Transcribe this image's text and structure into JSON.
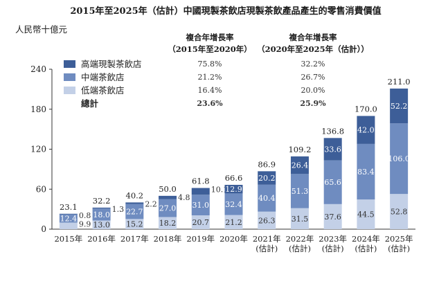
{
  "chart_data": {
    "type": "bar",
    "stacked": true,
    "title": "2015年至2025年（估計）中國現製茶飲店現製茶飲產品產生的零售消費價值",
    "ylabel": "人民幣十億元",
    "ylim": [
      0,
      240
    ],
    "yticks": [
      "0",
      "60",
      "120",
      "180",
      "240"
    ],
    "grid": false,
    "categories": [
      [
        "2015年"
      ],
      [
        "2016年"
      ],
      [
        "2017年"
      ],
      [
        "2018年"
      ],
      [
        "2019年"
      ],
      [
        "2020年"
      ],
      [
        "2021年",
        "(估計)"
      ],
      [
        "2022年",
        "(估計)"
      ],
      [
        "2023年",
        "(估計)"
      ],
      [
        "2024年",
        "(估計)"
      ],
      [
        "2025年",
        "(估計)"
      ]
    ],
    "series": [
      {
        "name": "低端茶飲店",
        "color": "#c3d0e7",
        "values": [
          9.9,
          13.0,
          15.2,
          18.2,
          20.7,
          21.2,
          26.3,
          31.5,
          37.6,
          44.5,
          52.8
        ]
      },
      {
        "name": "中端茶飲店",
        "color": "#6f8cc0",
        "values": [
          12.4,
          18.0,
          22.7,
          27.0,
          31.0,
          32.4,
          40.4,
          51.3,
          65.6,
          83.4,
          106.0
        ]
      },
      {
        "name": "高端現製茶飲店",
        "color": "#3d5e98",
        "values": [
          0.8,
          1.3,
          2.2,
          4.8,
          10.1,
          12.9,
          20.2,
          26.4,
          33.6,
          42.0,
          52.2
        ]
      }
    ],
    "totals": [
      23.1,
      32.2,
      40.2,
      50.0,
      61.8,
      66.6,
      86.9,
      109.2,
      136.8,
      170.0,
      211.0
    ],
    "legend": {
      "placement": "top-left",
      "items": [
        {
          "label": "高端現製茶飲店",
          "color": "#3d5e98"
        },
        {
          "label": "中端茶飲店",
          "color": "#6f8cc0"
        },
        {
          "label": "低端茶飲店",
          "color": "#c3d0e7"
        },
        {
          "label": "總計",
          "color": ""
        }
      ]
    },
    "cagr_table": {
      "headers": [
        [
          "複合年增長率",
          "（2015年至2020年）"
        ],
        [
          "複合年增長率",
          "（2020年至2025年（估計））"
        ]
      ],
      "rows": [
        [
          "75.8%",
          "32.2%"
        ],
        [
          "21.2%",
          "26.7%"
        ],
        [
          "16.4%",
          "20.0%"
        ],
        [
          "23.6%",
          "25.9%"
        ]
      ]
    }
  }
}
